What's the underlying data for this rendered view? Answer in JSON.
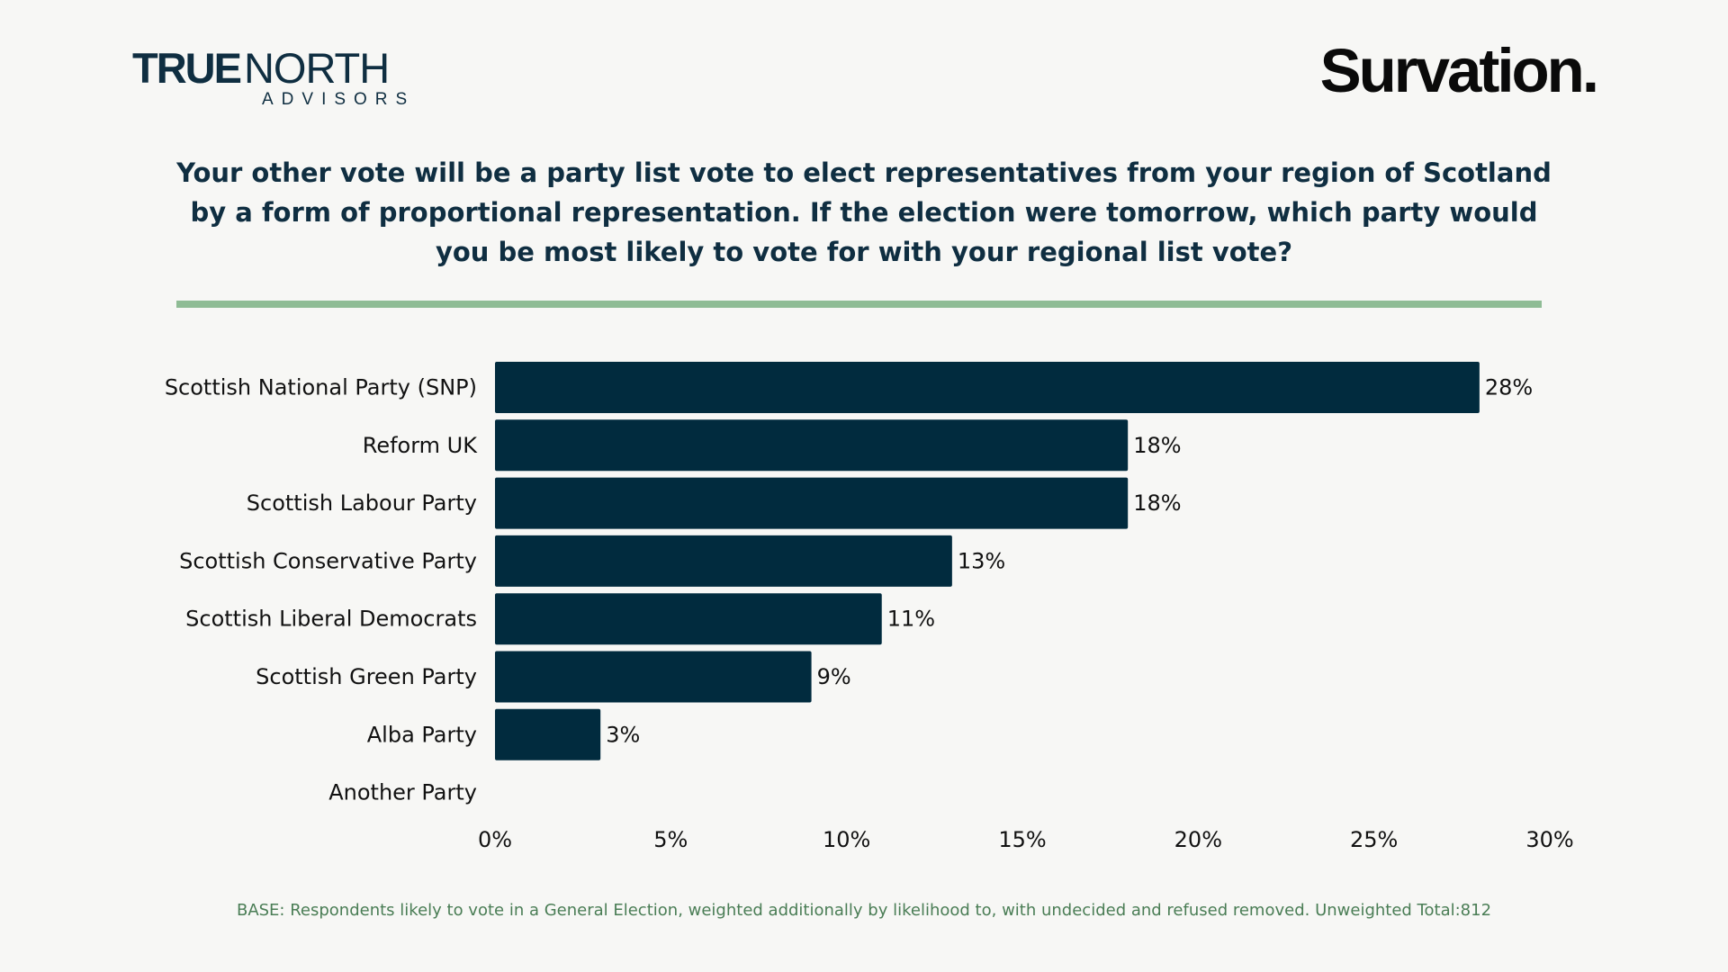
{
  "logos": {
    "truenorth_true": "TRUE",
    "truenorth_north": "NORTH",
    "truenorth_advisors": "ADVISORS",
    "survation": "Survation."
  },
  "question": "Your other vote will be a party list vote to elect representatives from your region of Scotland by a form of proportional representation. If the election were tomorrow, which party would you be most likely to vote for with your regional list vote?",
  "base_note": "BASE: Respondents likely to vote in a General Election, weighted additionally by likelihood to, with undecided and refused removed. Unweighted Total:812",
  "colors": {
    "bar": "#012b3e",
    "divider": "#8fbc95",
    "title": "#0f2e41",
    "note": "#4a7d55",
    "background": "#f7f7f5"
  },
  "chart_data": {
    "type": "bar",
    "orientation": "horizontal",
    "title": "",
    "xlabel": "",
    "ylabel": "",
    "categories": [
      "Scottish National Party (SNP)",
      "Reform UK",
      "Scottish Labour Party",
      "Scottish Conservative Party",
      "Scottish Liberal Democrats",
      "Scottish Green Party",
      "Alba Party",
      "Another Party"
    ],
    "values": [
      28,
      18,
      18,
      13,
      11,
      9,
      3,
      null
    ],
    "value_labels": [
      "28%",
      "18%",
      "18%",
      "13%",
      "11%",
      "9%",
      "3%",
      ""
    ],
    "xlim": [
      0,
      30
    ],
    "ticks": [
      0,
      5,
      10,
      15,
      20,
      25,
      30
    ],
    "tick_labels": [
      "0%",
      "5%",
      "10%",
      "15%",
      "20%",
      "25%",
      "30%"
    ],
    "grid": false,
    "legend": "none"
  }
}
